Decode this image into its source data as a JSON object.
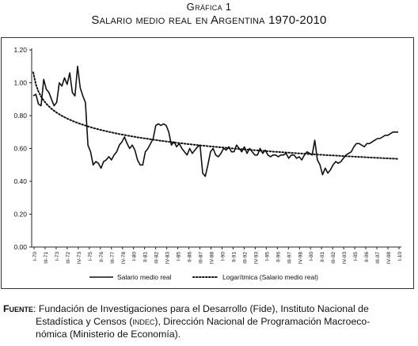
{
  "figure": {
    "label": "Gráfica 1",
    "title": "Salario medio real en Argentina 1970-2010"
  },
  "source": {
    "label": "Fuente",
    "line1": "Fundación de Investigaciones para el Desarrollo (Fide), Instituto Nacional de",
    "line2a": "Estadística y Censos (",
    "line2b": "indec",
    "line2c": "), Dirección Nacional de Programación Macroeco-",
    "line3": "nómica (Ministerio de Economía)."
  },
  "chart_data": {
    "type": "line",
    "ylim": [
      0,
      1.2
    ],
    "yticks": [
      "0.00",
      "0.20",
      "0.40",
      "0.60",
      "0.80",
      "1.00",
      "1.20"
    ],
    "xlabels": [
      "I-70",
      "III-71",
      "I-73",
      "III-72",
      "IV-73",
      "I-75",
      "II-76",
      "III-77",
      "IV-78",
      "I-80",
      "II-81",
      "III-82",
      "IV-83",
      "I-85",
      "II-86",
      "III-87",
      "IV-88",
      "I-90",
      "II-91",
      "III-92",
      "IV-93",
      "I-95",
      "II-96",
      "III-97",
      "IV-98",
      "I-00",
      "II-01",
      "III-02",
      "IV-03",
      "I-05",
      "II-06",
      "III-07",
      "IV-08",
      "I-10"
    ],
    "legend_position": "bottom",
    "grid": false,
    "series": [
      {
        "name": "Salario medio real",
        "style": "solid",
        "color": "#111111",
        "values": [
          0.92,
          0.93,
          0.87,
          0.86,
          1.02,
          0.96,
          0.94,
          0.9,
          0.86,
          0.88,
          1.0,
          0.98,
          1.03,
          0.99,
          1.06,
          0.94,
          0.92,
          1.1,
          0.97,
          0.92,
          0.88,
          0.62,
          0.58,
          0.5,
          0.52,
          0.51,
          0.48,
          0.52,
          0.53,
          0.55,
          0.53,
          0.56,
          0.58,
          0.62,
          0.64,
          0.67,
          0.63,
          0.6,
          0.62,
          0.59,
          0.53,
          0.5,
          0.5,
          0.58,
          0.6,
          0.63,
          0.66,
          0.74,
          0.75,
          0.74,
          0.75,
          0.74,
          0.7,
          0.62,
          0.64,
          0.61,
          0.63,
          0.6,
          0.58,
          0.56,
          0.6,
          0.57,
          0.59,
          0.61,
          0.62,
          0.45,
          0.43,
          0.5,
          0.58,
          0.6,
          0.56,
          0.55,
          0.57,
          0.6,
          0.59,
          0.61,
          0.58,
          0.58,
          0.62,
          0.6,
          0.58,
          0.61,
          0.57,
          0.6,
          0.58,
          0.56,
          0.56,
          0.6,
          0.57,
          0.59,
          0.56,
          0.55,
          0.56,
          0.56,
          0.55,
          0.56,
          0.56,
          0.57,
          0.54,
          0.56,
          0.56,
          0.54,
          0.55,
          0.53,
          0.56,
          0.58,
          0.57,
          0.56,
          0.65,
          0.53,
          0.5,
          0.44,
          0.48,
          0.45,
          0.47,
          0.5,
          0.52,
          0.51,
          0.52,
          0.54,
          0.56,
          0.57,
          0.58,
          0.61,
          0.63,
          0.63,
          0.62,
          0.61,
          0.63,
          0.63,
          0.64,
          0.65,
          0.66,
          0.66,
          0.67,
          0.68,
          0.68,
          0.69,
          0.7,
          0.7,
          0.7
        ]
      },
      {
        "name": "Logarítmica (Salario medio real)",
        "style": "dotted",
        "color": "#111111",
        "trend": "logarithmic"
      }
    ]
  }
}
